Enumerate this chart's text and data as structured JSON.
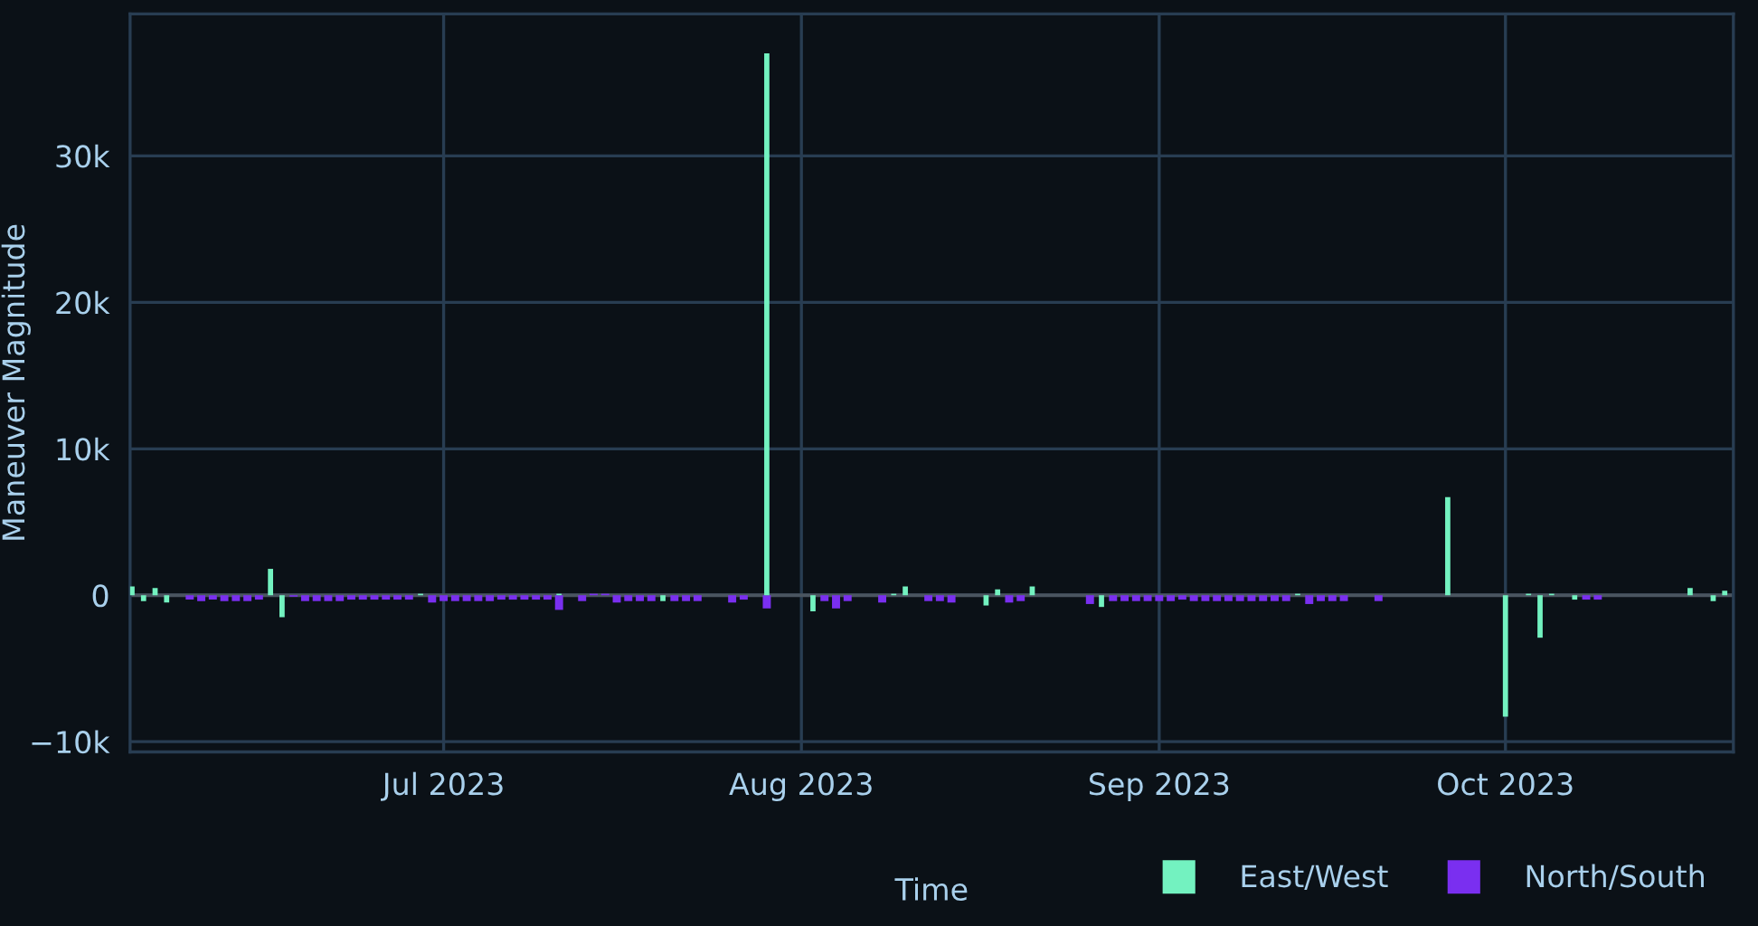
{
  "chart_data": {
    "type": "bar",
    "xlabel": "Time",
    "ylabel": "Maneuver Magnitude",
    "series": [
      {
        "name": "East/West",
        "color": "#73f2c0",
        "x": [
          "2023-06-04",
          "2023-06-05",
          "2023-06-06",
          "2023-06-07",
          "2023-06-16",
          "2023-06-17",
          "2023-06-29",
          "2023-07-11",
          "2023-07-20",
          "2023-07-29",
          "2023-08-02",
          "2023-08-09",
          "2023-08-10",
          "2023-08-17",
          "2023-08-18",
          "2023-08-21",
          "2023-08-27",
          "2023-09-13",
          "2023-09-26",
          "2023-10-01",
          "2023-10-03",
          "2023-10-04",
          "2023-10-05",
          "2023-10-07",
          "2023-10-17",
          "2023-10-19",
          "2023-10-20"
        ],
        "values": [
          600,
          -400,
          500,
          -500,
          1800,
          -1500,
          100,
          100,
          -400,
          37000,
          -1100,
          100,
          600,
          -700,
          400,
          600,
          -800,
          100,
          6700,
          -8300,
          100,
          -2900,
          100,
          -300,
          500,
          -400,
          300
        ]
      },
      {
        "name": "North/South",
        "color": "#7a2ff0",
        "x": [
          "2023-06-09",
          "2023-06-10",
          "2023-06-11",
          "2023-06-12",
          "2023-06-13",
          "2023-06-14",
          "2023-06-15",
          "2023-06-18",
          "2023-06-19",
          "2023-06-20",
          "2023-06-21",
          "2023-06-22",
          "2023-06-23",
          "2023-06-24",
          "2023-06-25",
          "2023-06-26",
          "2023-06-27",
          "2023-06-28",
          "2023-06-30",
          "2023-07-01",
          "2023-07-02",
          "2023-07-03",
          "2023-07-04",
          "2023-07-05",
          "2023-07-06",
          "2023-07-07",
          "2023-07-08",
          "2023-07-09",
          "2023-07-10",
          "2023-07-11",
          "2023-07-13",
          "2023-07-14",
          "2023-07-15",
          "2023-07-16",
          "2023-07-17",
          "2023-07-18",
          "2023-07-19",
          "2023-07-21",
          "2023-07-22",
          "2023-07-23",
          "2023-07-26",
          "2023-07-27",
          "2023-07-29",
          "2023-08-03",
          "2023-08-04",
          "2023-08-05",
          "2023-08-08",
          "2023-08-12",
          "2023-08-13",
          "2023-08-14",
          "2023-08-19",
          "2023-08-20",
          "2023-08-26",
          "2023-08-28",
          "2023-08-29",
          "2023-08-30",
          "2023-08-31",
          "2023-09-01",
          "2023-09-02",
          "2023-09-03",
          "2023-09-04",
          "2023-09-05",
          "2023-09-06",
          "2023-09-07",
          "2023-09-08",
          "2023-09-09",
          "2023-09-10",
          "2023-09-11",
          "2023-09-12",
          "2023-09-14",
          "2023-09-15",
          "2023-09-16",
          "2023-09-17",
          "2023-09-20",
          "2023-10-08",
          "2023-10-09"
        ],
        "values": [
          -300,
          -400,
          -300,
          -400,
          -400,
          -400,
          -300,
          -100,
          -400,
          -400,
          -400,
          -400,
          -300,
          -300,
          -300,
          -300,
          -300,
          -300,
          -500,
          -400,
          -400,
          -400,
          -400,
          -400,
          -300,
          -300,
          -300,
          -300,
          -300,
          -1000,
          -400,
          100,
          100,
          -500,
          -400,
          -400,
          -400,
          -400,
          -400,
          -400,
          -500,
          -300,
          -900,
          -400,
          -900,
          -400,
          -500,
          -400,
          -400,
          -500,
          -500,
          -400,
          -600,
          -400,
          -400,
          -400,
          -400,
          -400,
          -400,
          -300,
          -400,
          -400,
          -400,
          -400,
          -400,
          -400,
          -400,
          -400,
          -400,
          -600,
          -400,
          -400,
          -400,
          -400,
          -300,
          -300
        ]
      }
    ],
    "xlim": [
      "2023-06-03T20:00",
      "2023-10-20T18:00"
    ],
    "xticks": [
      {
        "value": "2023-07-01",
        "label": "Jul 2023"
      },
      {
        "value": "2023-08-01",
        "label": "Aug 2023"
      },
      {
        "value": "2023-09-01",
        "label": "Sep 2023"
      },
      {
        "value": "2023-10-01",
        "label": "Oct 2023"
      }
    ],
    "ylim": [
      -10700,
      39700
    ],
    "yticks": [
      {
        "value": -10000,
        "label": "−10k"
      },
      0,
      {
        "value": 10000,
        "label": "10k"
      },
      {
        "value": 20000,
        "label": "20k"
      },
      {
        "value": 30000,
        "label": "30k"
      }
    ],
    "ref_lines": [
      {
        "axis": "y",
        "value": 0,
        "color": "#4a5560"
      }
    ],
    "grid": true,
    "legend": "bottom right"
  }
}
